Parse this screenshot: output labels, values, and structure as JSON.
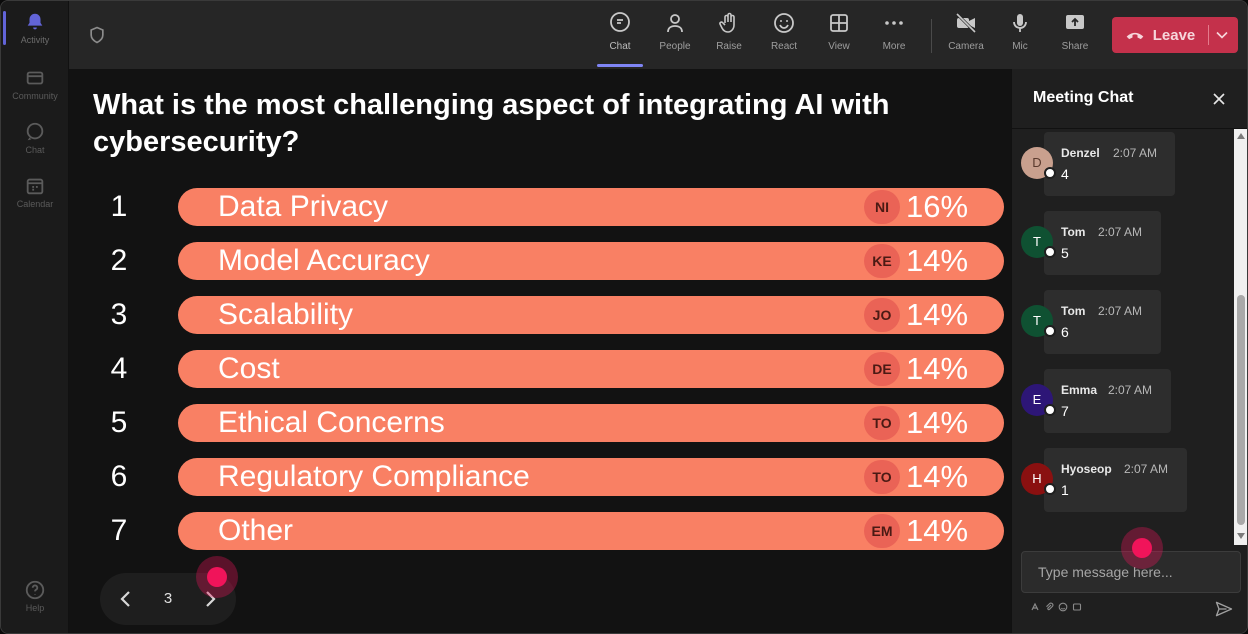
{
  "rail": {
    "items": [
      {
        "label": "Activity",
        "icon": "bell-icon",
        "active": true
      },
      {
        "label": "Community",
        "icon": "community-icon"
      },
      {
        "label": "Chat",
        "icon": "chat-icon"
      },
      {
        "label": "Calendar",
        "icon": "calendar-icon"
      },
      {
        "label": "Help",
        "icon": "help-icon"
      }
    ]
  },
  "toolbar": {
    "chat": "Chat",
    "people": "People",
    "raise": "Raise",
    "react": "React",
    "view": "View",
    "more": "More",
    "camera": "Camera",
    "mic": "Mic",
    "share": "Share",
    "leave": "Leave"
  },
  "poll": {
    "question": "What is the most challenging aspect of integrating AI with cybersecurity?",
    "options": [
      {
        "num": "1",
        "label": "Data Privacy",
        "initials": "NI",
        "pct": "16%"
      },
      {
        "num": "2",
        "label": "Model Accuracy",
        "initials": "KE",
        "pct": "14%"
      },
      {
        "num": "3",
        "label": "Scalability",
        "initials": "JO",
        "pct": "14%"
      },
      {
        "num": "4",
        "label": "Cost",
        "initials": "DE",
        "pct": "14%"
      },
      {
        "num": "5",
        "label": "Ethical Concerns",
        "initials": "TO",
        "pct": "14%"
      },
      {
        "num": "6",
        "label": "Regulatory Compliance",
        "initials": "TO",
        "pct": "14%"
      },
      {
        "num": "7",
        "label": "Other",
        "initials": "EM",
        "pct": "14%"
      }
    ],
    "page": "3"
  },
  "chat": {
    "title": "Meeting Chat",
    "messages": [
      {
        "initial": "D",
        "name": "Denzel",
        "time": "2:07 AM",
        "text": "4",
        "avatar_color": "#c9a08e"
      },
      {
        "initial": "T",
        "name": "Tom",
        "time": "2:07 AM",
        "text": "5",
        "avatar_color": "#0f5132"
      },
      {
        "initial": "T",
        "name": "Tom",
        "time": "2:07 AM",
        "text": "6",
        "avatar_color": "#0f5132"
      },
      {
        "initial": "E",
        "name": "Emma",
        "time": "2:07 AM",
        "text": "7",
        "avatar_color": "#2d1677"
      },
      {
        "initial": "H",
        "name": "Hyoseop",
        "time": "2:07 AM",
        "text": "1",
        "avatar_color": "#8a1010"
      }
    ],
    "input_placeholder": "Type message here..."
  },
  "colors": {
    "accent": "#6264d8",
    "leave": "#c4314b",
    "bar": "#f98064",
    "cursor": "#f0145a"
  }
}
